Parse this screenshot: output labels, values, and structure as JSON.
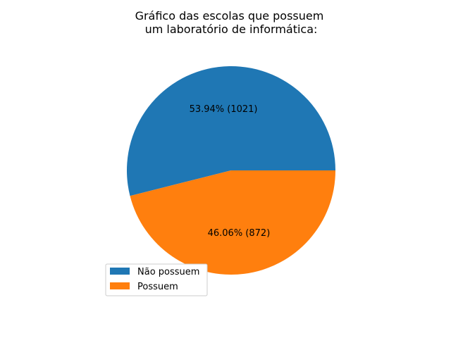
{
  "chart_data": {
    "type": "pie",
    "title": "Gráfico das escolas que possuem\num laboratório de informática:",
    "slices": [
      {
        "label": "Não possuem",
        "value": 1021,
        "percent_label": "53.94%  (1021)",
        "color": "#1f77b4"
      },
      {
        "label": "Possuem",
        "value": 872,
        "percent_label": "46.06%  (872)",
        "color": "#ff7f0e"
      }
    ],
    "legend_position": "lower-left"
  }
}
